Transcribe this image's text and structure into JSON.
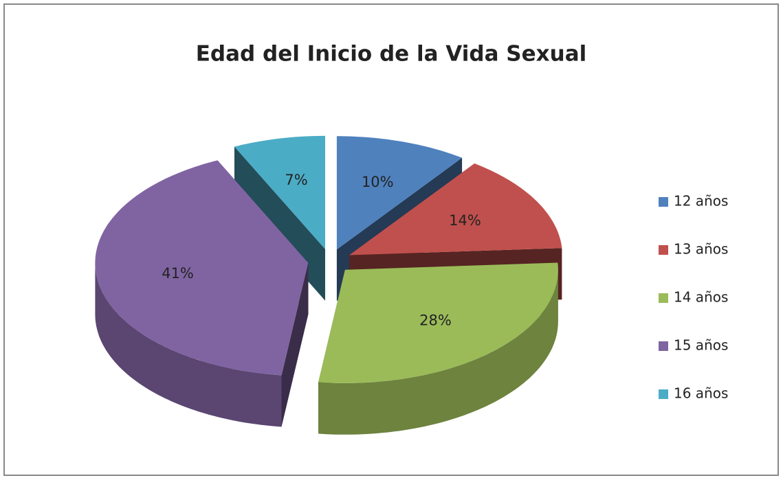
{
  "chart_data": {
    "type": "pie",
    "title": "Edad del Inicio de la Vida Sexual",
    "categories": [
      "12 años",
      "13 años",
      "14 años",
      "15 años",
      "16 años"
    ],
    "values": [
      10,
      14,
      28,
      41,
      7
    ],
    "value_labels": [
      "10%",
      "14%",
      "28%",
      "41%",
      "7%"
    ],
    "colors": [
      "#4f81bd",
      "#c0504d",
      "#9bbb59",
      "#8064a2",
      "#4bacc6"
    ]
  }
}
